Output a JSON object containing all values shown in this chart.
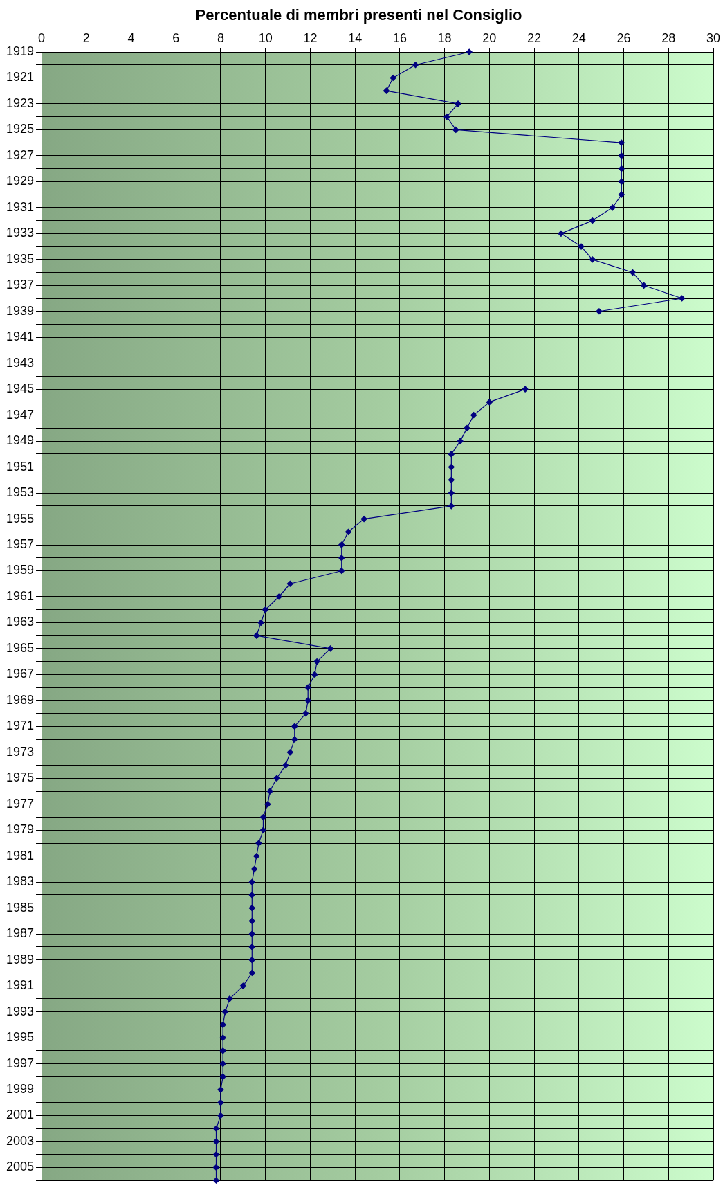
{
  "chart_data": {
    "type": "line",
    "title": "Percentuale di membri presenti nel Consiglio",
    "orientation": "horizontal",
    "categories": [
      "1919",
      null,
      "1921",
      null,
      "1923",
      null,
      "1925",
      null,
      "1927",
      null,
      "1929",
      null,
      "1931",
      null,
      "1933",
      null,
      "1935",
      null,
      "1937",
      null,
      "1939",
      null,
      "1941",
      null,
      "1943",
      null,
      "1945",
      null,
      "1947",
      null,
      "1949",
      null,
      "1951",
      null,
      "1953",
      null,
      "1955",
      null,
      "1957",
      null,
      "1959",
      null,
      "1961",
      null,
      "1963",
      null,
      "1965",
      null,
      "1967",
      null,
      "1969",
      null,
      "1971",
      null,
      "1973",
      null,
      "1975",
      null,
      "1977",
      null,
      "1979",
      null,
      "1981",
      null,
      "1983",
      null,
      "1985",
      null,
      "1987",
      null,
      "1989",
      null,
      "1991",
      null,
      "1993",
      null,
      "1995",
      null,
      "1997",
      null,
      "1999",
      null,
      "2001",
      null,
      "2003",
      null,
      "2005",
      null
    ],
    "series": [
      {
        "color": "#000080",
        "values": [
          19.1,
          16.7,
          15.7,
          15.4,
          18.6,
          18.1,
          18.5,
          25.9,
          25.9,
          25.9,
          25.9,
          25.9,
          25.5,
          24.6,
          23.2,
          24.1,
          24.6,
          26.4,
          26.9,
          28.6,
          24.9,
          null,
          null,
          null,
          null,
          null,
          21.6,
          20.0,
          19.3,
          19.0,
          18.7,
          18.3,
          18.3,
          18.3,
          18.3,
          18.3,
          14.4,
          13.7,
          13.4,
          13.4,
          13.4,
          11.1,
          10.6,
          10.0,
          9.8,
          9.6,
          12.9,
          12.3,
          12.2,
          11.9,
          11.9,
          11.8,
          11.3,
          11.3,
          11.1,
          10.9,
          10.5,
          10.2,
          10.1,
          9.9,
          9.9,
          9.7,
          9.6,
          9.5,
          9.4,
          9.4,
          9.4,
          9.4,
          9.4,
          9.4,
          9.4,
          9.4,
          9.0,
          8.4,
          8.2,
          8.1,
          8.1,
          8.1,
          8.1,
          8.1,
          8.0,
          8.0,
          8.0,
          7.8,
          7.8,
          7.8,
          7.8,
          7.8
        ]
      }
    ],
    "xlim": [
      0,
      30
    ],
    "xticks": [
      0,
      2,
      4,
      6,
      8,
      10,
      12,
      14,
      16,
      18,
      20,
      22,
      24,
      26,
      28,
      30
    ],
    "grid": true,
    "legend": false,
    "marker": "diamond",
    "line_style": "solid"
  }
}
